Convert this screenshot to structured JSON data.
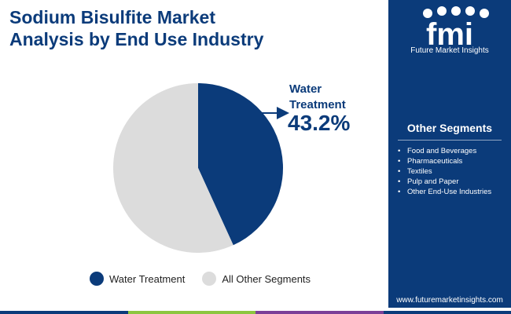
{
  "title_line1": "Sodium Bisulfite Market",
  "title_line2": "Analysis by End Use Industry",
  "chart_data": {
    "type": "pie",
    "categories": [
      "Water Treatment",
      "All Other Segments"
    ],
    "values": [
      43.2,
      56.8
    ],
    "colors": [
      "#0b3b7a",
      "#dcdcdc"
    ],
    "legend_position": "bottom",
    "annotation": {
      "label_line1": "Water",
      "label_line2": "Treatment",
      "value": "43.2%"
    }
  },
  "legend": [
    {
      "label": "Water Treatment",
      "color": "#0b3b7a"
    },
    {
      "label": "All Other Segments",
      "color": "#dcdcdc"
    }
  ],
  "sidebar": {
    "logo_text": "Future Market Insights",
    "logo_letters": "fmi",
    "header": "Other Segments",
    "items": [
      "Food and Beverages",
      "Pharmaceuticals",
      "Textiles",
      "Pulp and Paper",
      "Other End-Use Industries"
    ],
    "url": "www.futuremarketinsights.com"
  },
  "bottom_bar_colors": [
    "#0b3b7a",
    "#8cc63f",
    "#7b3f98",
    "#0b3b7a"
  ]
}
